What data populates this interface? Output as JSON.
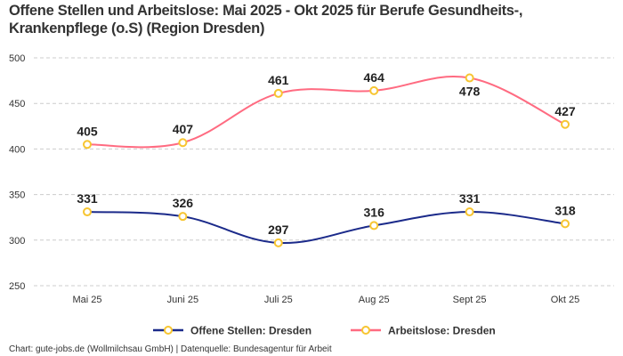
{
  "chart_data": {
    "type": "line",
    "title": "Offene Stellen und Arbeitslose: Mai 2025 - Okt 2025 für Berufe Gesundheits-, Krankenpflege (o.S) (Region Dresden)",
    "categories": [
      "Mai 25",
      "Juni 25",
      "Juli 25",
      "Aug 25",
      "Sept 25",
      "Okt 25"
    ],
    "series": [
      {
        "name": "Offene Stellen: Dresden",
        "values": [
          331,
          326,
          297,
          316,
          331,
          318
        ],
        "color": "#1b2a8a"
      },
      {
        "name": "Arbeitslose: Dresden",
        "values": [
          405,
          407,
          461,
          464,
          478,
          427
        ],
        "color": "#ff6b81"
      }
    ],
    "marker_color": "#f7c531",
    "ylim": [
      250,
      500
    ],
    "yticks": [
      250,
      300,
      350,
      400,
      450,
      500
    ],
    "grid": true,
    "legend": "bottom",
    "smooth": true
  },
  "footer": "Chart: gute-jobs.de (Wollmilchsau GmbH) | Datenquelle: Bundesagentur für Arbeit"
}
